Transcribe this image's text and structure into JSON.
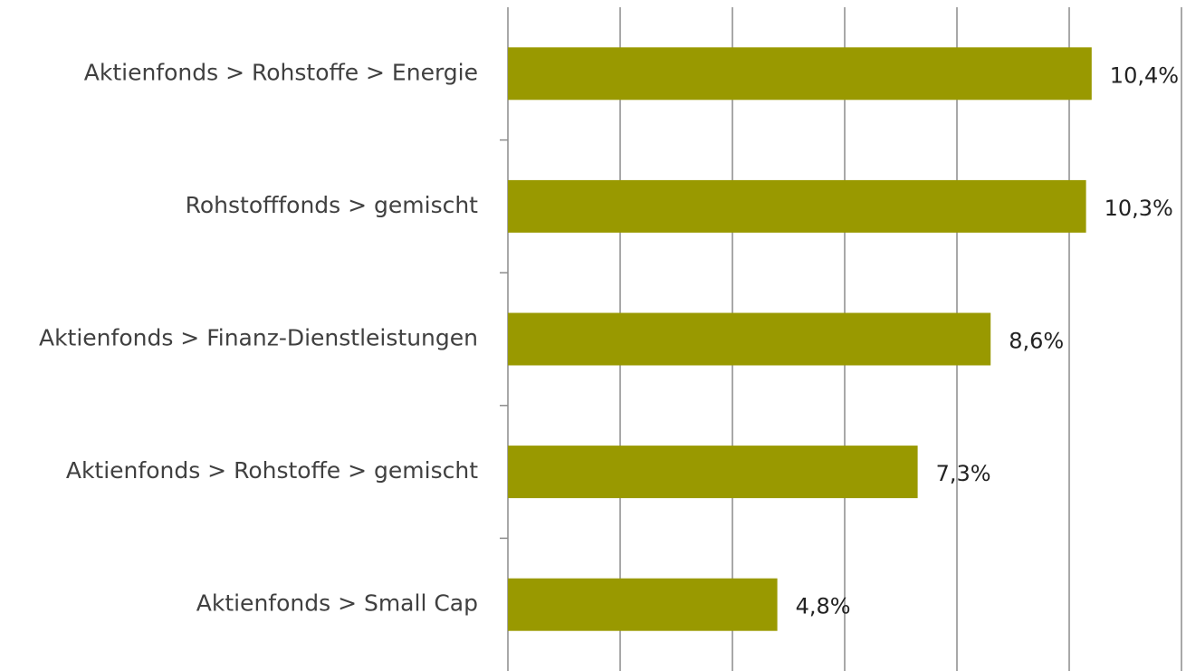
{
  "chart_data": {
    "type": "barh",
    "categories": [
      "Aktienfonds > Rohstoffe > Energie",
      "Rohstofffonds > gemischt",
      "Aktienfonds > Finanz-Dienstleistungen",
      "Aktienfonds > Rohstoffe > gemischt",
      "Aktienfonds > Small Cap"
    ],
    "values": [
      10.4,
      10.3,
      8.6,
      7.3,
      4.8
    ],
    "value_labels": [
      "10,4%",
      "10,3%",
      "8,6%",
      "7,3%",
      "4,8%"
    ],
    "color": "#999900",
    "xlim": [
      0,
      12
    ],
    "xticks": [
      0,
      2,
      4,
      6,
      8,
      10,
      12
    ],
    "grid": true
  }
}
